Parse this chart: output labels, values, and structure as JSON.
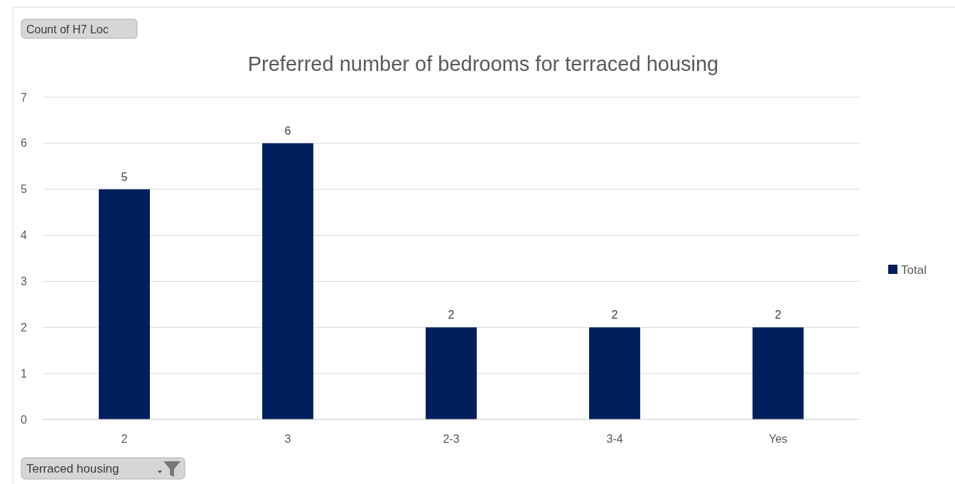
{
  "chart_data": {
    "type": "bar",
    "title": "Preferred number of bedrooms for terraced housing",
    "categories": [
      "2",
      "3",
      "2-3",
      "3-4",
      "Yes"
    ],
    "series": [
      {
        "name": "Total",
        "color": "#001f5c",
        "values": [
          5,
          6,
          2,
          2,
          2
        ]
      }
    ],
    "ylim": [
      0,
      7
    ],
    "yticks": [
      0,
      1,
      2,
      3,
      4,
      5,
      6,
      7
    ],
    "grid": "y",
    "legend": "right",
    "data_labels": true,
    "annotations": [
      "Count of H7 Loc",
      "Terraced housing"
    ]
  }
}
